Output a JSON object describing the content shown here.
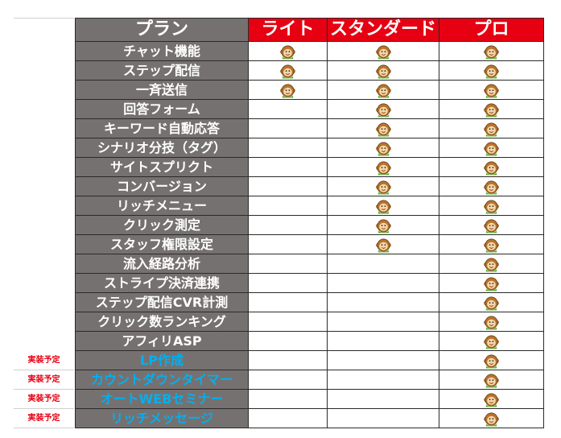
{
  "table": {
    "header": {
      "feature": "プラン",
      "lite": "ライト",
      "standard": "スタンダード",
      "pro": "プロ"
    },
    "rows": [
      {
        "feature": "チャット機能",
        "lite": true,
        "standard": true,
        "pro": true
      },
      {
        "feature": "ステップ配信",
        "lite": true,
        "standard": true,
        "pro": true
      },
      {
        "feature": "一斉送信",
        "lite": true,
        "standard": true,
        "pro": true
      },
      {
        "feature": "回答フォーム",
        "lite": false,
        "standard": true,
        "pro": true
      },
      {
        "feature": "キーワード自動応答",
        "lite": false,
        "standard": true,
        "pro": true
      },
      {
        "feature": "シナリオ分技（タグ）",
        "lite": false,
        "standard": true,
        "pro": true
      },
      {
        "feature": "サイトスプリクト",
        "lite": false,
        "standard": true,
        "pro": true
      },
      {
        "feature": "コンバージョン",
        "lite": false,
        "standard": true,
        "pro": true
      },
      {
        "feature": "リッチメニュー",
        "lite": false,
        "standard": true,
        "pro": true
      },
      {
        "feature": "クリック測定",
        "lite": false,
        "standard": true,
        "pro": true
      },
      {
        "feature": "スタッフ権限設定",
        "lite": false,
        "standard": true,
        "pro": true
      },
      {
        "feature": "流入経路分析",
        "lite": false,
        "standard": false,
        "pro": true
      },
      {
        "feature": "ストライプ決済連携",
        "lite": false,
        "standard": false,
        "pro": true
      },
      {
        "feature": "ステップ配信CVR計測",
        "lite": false,
        "standard": false,
        "pro": true
      },
      {
        "feature": "クリック数ランキング",
        "lite": false,
        "standard": false,
        "pro": true
      },
      {
        "feature": "アフィリASP",
        "lite": false,
        "standard": false,
        "pro": true
      },
      {
        "feature": "LP作成",
        "lite": false,
        "standard": false,
        "pro": true,
        "upcoming": true
      },
      {
        "feature": "カウントダウンタイマー",
        "lite": false,
        "standard": false,
        "pro": true,
        "upcoming": true
      },
      {
        "feature": "オートWEBセミナー",
        "lite": false,
        "standard": false,
        "pro": true,
        "upcoming": true
      },
      {
        "feature": "リッチメッセージ",
        "lite": false,
        "standard": false,
        "pro": true,
        "upcoming": true
      }
    ]
  },
  "upcoming_tag": "実装予定",
  "colors": {
    "header_plan_bg": "#e60012",
    "feature_bg": "#767171",
    "upcoming_text": "#00b0f0",
    "tag_text": "#e60012"
  },
  "icon": "monkey-mascot-icon"
}
